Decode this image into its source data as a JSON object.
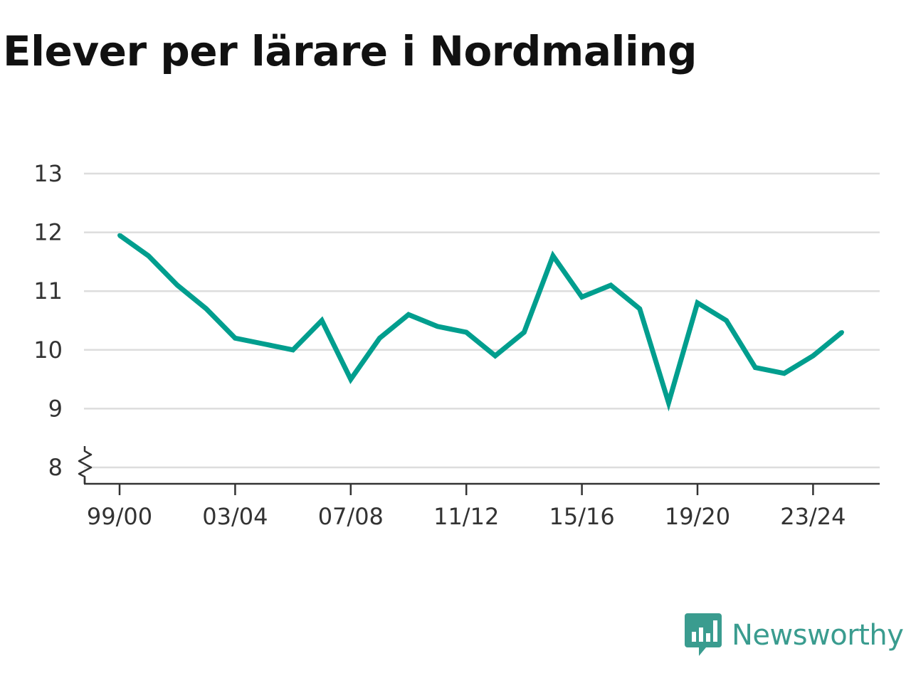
{
  "title": "Elever per lärare i Nordmaling",
  "brand": {
    "name": "Newsworthy",
    "icon": "newsworthy-logo-icon"
  },
  "colors": {
    "line": "#009e8e",
    "grid": "#dddddd",
    "axis": "#333333",
    "brand": "#3a9c8f"
  },
  "chart_data": {
    "type": "line",
    "title": "Elever per lärare i Nordmaling",
    "xlabel": "",
    "ylabel": "",
    "x": [
      "99/00",
      "00/01",
      "01/02",
      "02/03",
      "03/04",
      "04/05",
      "05/06",
      "06/07",
      "07/08",
      "08/09",
      "09/10",
      "10/11",
      "11/12",
      "12/13",
      "13/14",
      "14/15",
      "15/16",
      "16/17",
      "17/18",
      "18/19",
      "19/20",
      "20/21",
      "21/22",
      "22/23",
      "23/24",
      "24/25"
    ],
    "x_tick_labels": [
      "99/00",
      "03/04",
      "07/08",
      "11/12",
      "15/16",
      "19/20",
      "23/24"
    ],
    "y_ticks": [
      8,
      9,
      10,
      11,
      12,
      13
    ],
    "ylim": [
      8,
      13
    ],
    "axis_break": true,
    "grid": true,
    "series": [
      {
        "values": [
          11.95,
          11.6,
          11.1,
          10.7,
          10.2,
          10.1,
          10.0,
          10.5,
          9.5,
          10.2,
          10.6,
          10.4,
          10.3,
          9.9,
          10.3,
          11.6,
          10.9,
          11.1,
          10.7,
          9.1,
          10.8,
          10.5,
          9.7,
          9.6,
          9.9,
          10.3
        ]
      }
    ]
  }
}
